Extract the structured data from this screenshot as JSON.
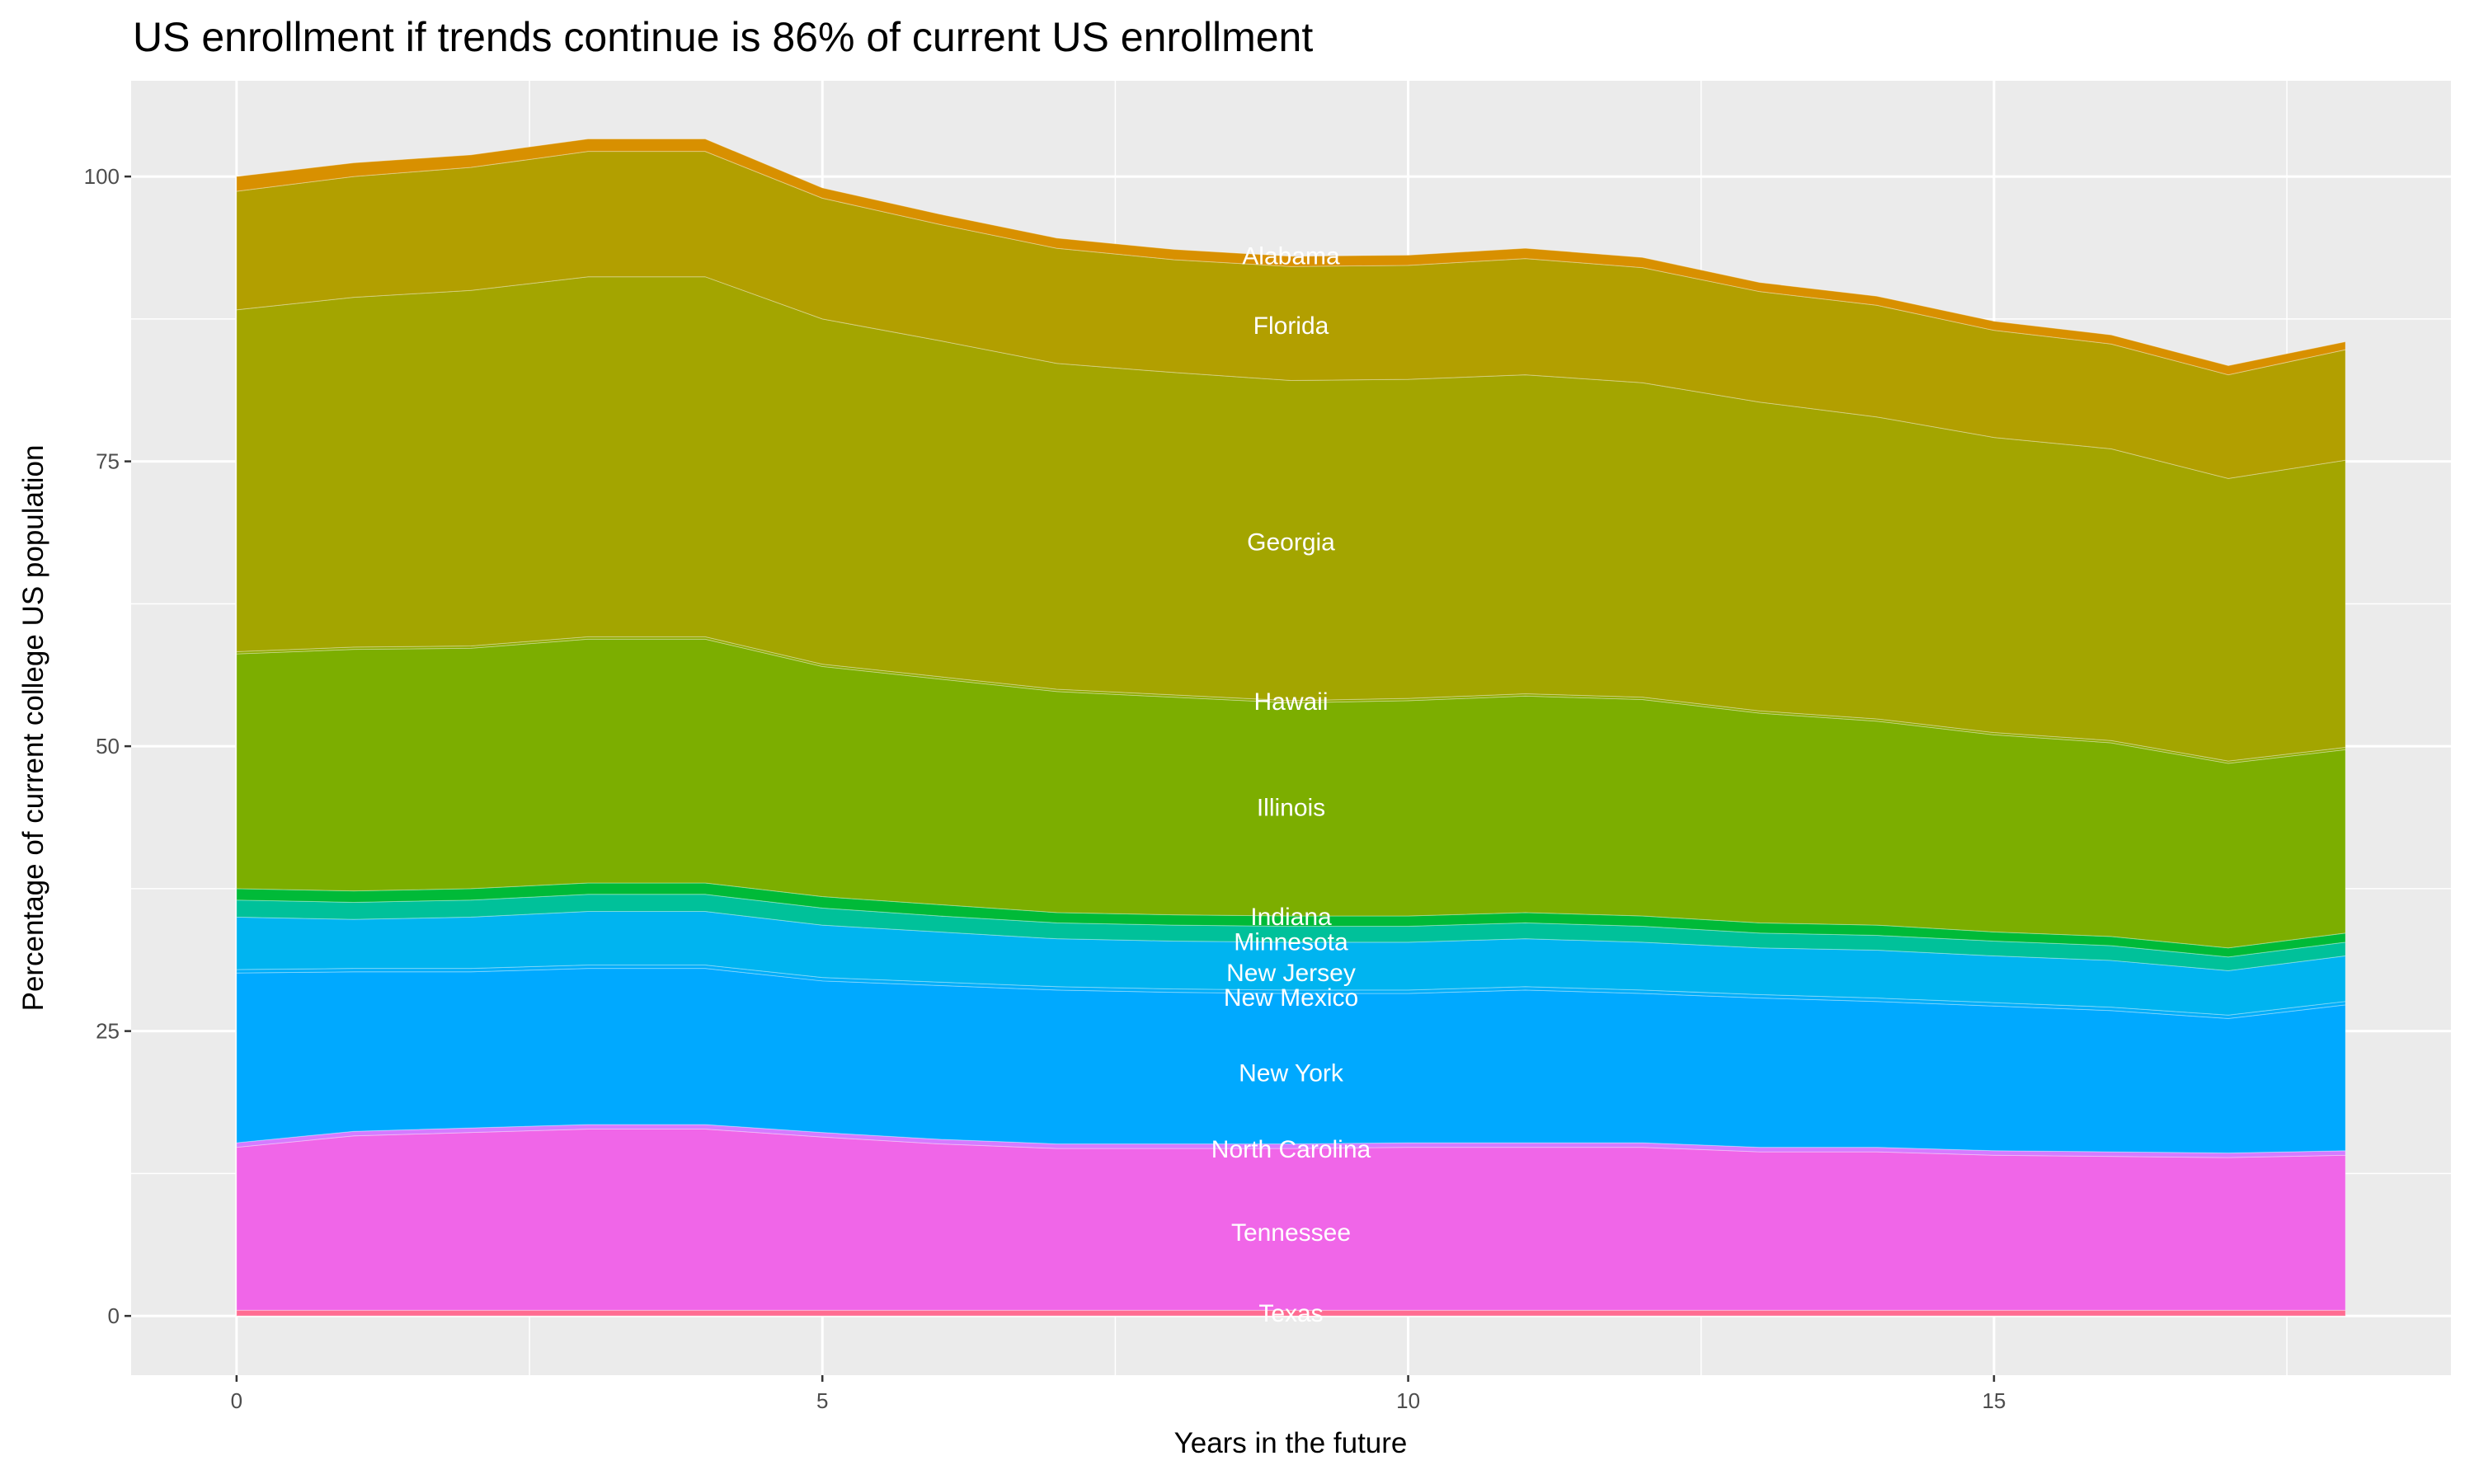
{
  "chart_data": {
    "type": "area",
    "stacked": true,
    "title": "US enrollment if trends continue is 86% of current US enrollment",
    "xlabel": "Years in the future",
    "ylabel": "Percentage of current college US population",
    "xlim": [
      -0.9,
      18.9
    ],
    "ylim": [
      -5.2,
      108.4
    ],
    "x_ticks": [
      0,
      5,
      10,
      15
    ],
    "y_ticks": [
      0,
      25,
      50,
      75,
      100
    ],
    "grid": true,
    "legend": "none",
    "background": "#ebebeb",
    "x": [
      0,
      1,
      2,
      3,
      4,
      5,
      6,
      7,
      8,
      9,
      10,
      11,
      12,
      13,
      14,
      15,
      16,
      17,
      18
    ],
    "series": [
      {
        "name": "Texas",
        "color": "#ff6c91",
        "values": [
          0.5,
          0.5,
          0.5,
          0.5,
          0.5,
          0.5,
          0.5,
          0.5,
          0.5,
          0.5,
          0.5,
          0.5,
          0.5,
          0.5,
          0.5,
          0.5,
          0.5,
          0.5,
          0.5
        ]
      },
      {
        "name": "Tennessee",
        "color": "#f066e8",
        "values": [
          14.3,
          15.3,
          15.6,
          15.9,
          15.9,
          15.2,
          14.6,
          14.2,
          14.2,
          14.2,
          14.3,
          14.3,
          14.3,
          13.9,
          13.9,
          13.6,
          13.5,
          13.4,
          13.6
        ]
      },
      {
        "name": "North Carolina",
        "color": "#d57bff",
        "values": [
          0.4,
          0.4,
          0.4,
          0.4,
          0.4,
          0.4,
          0.4,
          0.4,
          0.4,
          0.4,
          0.4,
          0.4,
          0.4,
          0.4,
          0.4,
          0.4,
          0.4,
          0.4,
          0.4
        ]
      },
      {
        "name": "New York",
        "color": "#00a9ff",
        "values": [
          14.9,
          14.0,
          13.7,
          13.7,
          13.7,
          13.3,
          13.5,
          13.5,
          13.3,
          13.2,
          13.1,
          13.4,
          13.1,
          13.1,
          12.8,
          12.7,
          12.4,
          11.8,
          12.8
        ]
      },
      {
        "name": "New Mexico",
        "color": "#00aefa",
        "values": [
          0.3,
          0.3,
          0.3,
          0.3,
          0.3,
          0.3,
          0.3,
          0.3,
          0.3,
          0.3,
          0.3,
          0.3,
          0.3,
          0.3,
          0.3,
          0.3,
          0.3,
          0.3,
          0.3
        ]
      },
      {
        "name": "New Jersey",
        "color": "#00b4f0",
        "values": [
          4.6,
          4.3,
          4.5,
          4.7,
          4.7,
          4.6,
          4.4,
          4.2,
          4.2,
          4.2,
          4.2,
          4.2,
          4.2,
          4.1,
          4.2,
          4.1,
          4.1,
          3.9,
          4.0
        ]
      },
      {
        "name": "Minnesota",
        "color": "#00c19a",
        "values": [
          1.5,
          1.5,
          1.5,
          1.5,
          1.5,
          1.5,
          1.4,
          1.4,
          1.4,
          1.4,
          1.4,
          1.4,
          1.4,
          1.3,
          1.3,
          1.3,
          1.3,
          1.2,
          1.2
        ]
      },
      {
        "name": "Indiana",
        "color": "#00ba38",
        "values": [
          1.0,
          1.0,
          1.0,
          1.0,
          1.0,
          1.0,
          1.0,
          0.9,
          0.9,
          0.9,
          0.9,
          0.9,
          0.9,
          0.9,
          0.9,
          0.8,
          0.8,
          0.8,
          0.8
        ]
      },
      {
        "name": "Illinois",
        "color": "#7cae00",
        "values": [
          20.6,
          21.2,
          21.1,
          21.4,
          21.4,
          20.2,
          19.8,
          19.4,
          19.1,
          18.7,
          18.9,
          19.0,
          19.0,
          18.4,
          17.9,
          17.3,
          17.0,
          16.2,
          16.1
        ]
      },
      {
        "name": "Hawaii",
        "color": "#8fab00",
        "values": [
          0.2,
          0.2,
          0.2,
          0.2,
          0.2,
          0.2,
          0.2,
          0.2,
          0.2,
          0.2,
          0.2,
          0.2,
          0.2,
          0.2,
          0.2,
          0.2,
          0.2,
          0.2,
          0.2
        ]
      },
      {
        "name": "Georgia",
        "color": "#a3a500",
        "values": [
          30.0,
          30.7,
          31.2,
          31.6,
          31.6,
          30.3,
          29.5,
          28.6,
          28.3,
          28.1,
          28.0,
          28.0,
          27.6,
          27.1,
          26.5,
          25.9,
          25.6,
          24.8,
          25.2
        ]
      },
      {
        "name": "Florida",
        "color": "#b29f00",
        "values": [
          10.4,
          10.6,
          10.8,
          11.0,
          11.0,
          10.6,
          10.2,
          10.1,
          9.9,
          10.0,
          10.0,
          10.2,
          10.1,
          9.7,
          9.8,
          9.4,
          9.2,
          9.1,
          9.7
        ]
      },
      {
        "name": "Alabama",
        "color": "#d89000",
        "values": [
          1.3,
          1.2,
          1.1,
          1.1,
          1.1,
          0.9,
          0.9,
          0.9,
          0.9,
          0.9,
          0.9,
          0.9,
          0.9,
          0.8,
          0.8,
          0.8,
          0.8,
          0.8,
          0.7
        ]
      }
    ],
    "labels": {
      "x": 9,
      "items": [
        {
          "text": "Alabama",
          "y": 93.1
        },
        {
          "text": "Florida",
          "y": 87.0
        },
        {
          "text": "Georgia",
          "y": 68.0
        },
        {
          "text": "Hawaii",
          "y": 54.0
        },
        {
          "text": "Illinois",
          "y": 44.7
        },
        {
          "text": "Indiana",
          "y": 35.1
        },
        {
          "text": "Minnesota",
          "y": 32.9
        },
        {
          "text": "New Jersey",
          "y": 30.2
        },
        {
          "text": "New Mexico",
          "y": 28.0
        },
        {
          "text": "New York",
          "y": 21.4
        },
        {
          "text": "North Carolina",
          "y": 14.7
        },
        {
          "text": "Tennessee",
          "y": 7.4
        },
        {
          "text": "Texas",
          "y": 0.3
        }
      ]
    }
  }
}
